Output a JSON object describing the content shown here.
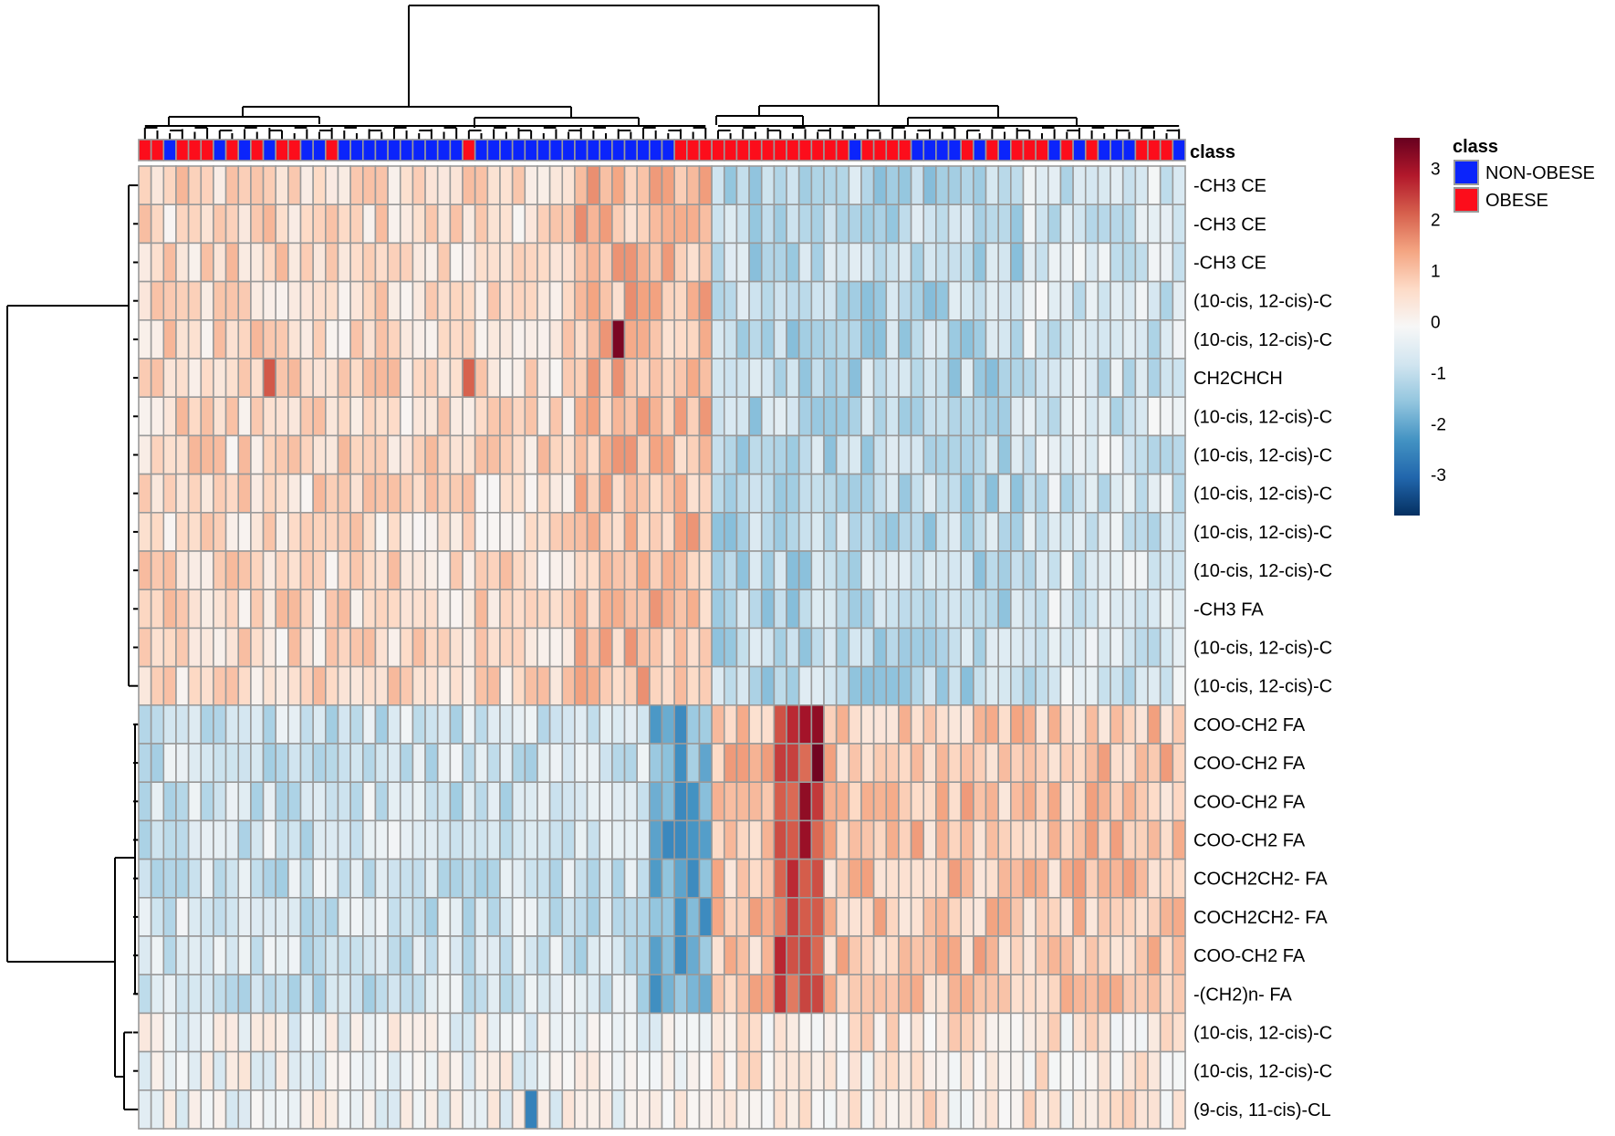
{
  "chart_data": {
    "type": "heatmap",
    "annotation_title": "class",
    "row_labels": [
      "-CH3 CE",
      "-CH3 CE",
      "-CH3 CE",
      "(10-cis, 12-cis)-C",
      "(10-cis, 12-cis)-C",
      "CH2CHCH",
      "(10-cis, 12-cis)-C",
      "(10-cis, 12-cis)-C",
      "(10-cis, 12-cis)-C",
      "(10-cis, 12-cis)-C",
      "(10-cis, 12-cis)-C",
      "-CH3 FA",
      "(10-cis, 12-cis)-C",
      "(10-cis, 12-cis)-C",
      "COO-CH2 FA",
      "COO-CH2 FA",
      "COO-CH2 FA",
      "COO-CH2 FA",
      "COCH2CH2- FA",
      "COCH2CH2- FA",
      "COO-CH2 FA",
      "-(CH2)n- FA",
      "(10-cis, 12-cis)-C",
      "(10-cis, 12-cis)-C",
      "(9-cis, 11-cis)-CL"
    ],
    "column_classes": [
      "OBESE",
      "OBESE",
      "NON-OBESE",
      "OBESE",
      "OBESE",
      "OBESE",
      "NON-OBESE",
      "OBESE",
      "NON-OBESE",
      "OBESE",
      "NON-OBESE",
      "OBESE",
      "OBESE",
      "NON-OBESE",
      "NON-OBESE",
      "OBESE",
      "NON-OBESE",
      "NON-OBESE",
      "NON-OBESE",
      "NON-OBESE",
      "NON-OBESE",
      "NON-OBESE",
      "NON-OBESE",
      "NON-OBESE",
      "NON-OBESE",
      "NON-OBESE",
      "OBESE",
      "NON-OBESE",
      "NON-OBESE",
      "NON-OBESE",
      "NON-OBESE",
      "NON-OBESE",
      "NON-OBESE",
      "NON-OBESE",
      "NON-OBESE",
      "NON-OBESE",
      "NON-OBESE",
      "NON-OBESE",
      "NON-OBESE",
      "NON-OBESE",
      "NON-OBESE",
      "NON-OBESE",
      "NON-OBESE",
      "OBESE",
      "OBESE",
      "OBESE",
      "OBESE",
      "OBESE",
      "OBESE",
      "OBESE",
      "OBESE",
      "OBESE",
      "OBESE",
      "OBESE",
      "OBESE",
      "OBESE",
      "OBESE",
      "NON-OBESE",
      "OBESE",
      "OBESE",
      "OBESE",
      "OBESE",
      "NON-OBESE",
      "NON-OBESE",
      "NON-OBESE",
      "NON-OBESE",
      "OBESE",
      "NON-OBESE",
      "OBESE",
      "NON-OBESE",
      "OBESE",
      "OBESE",
      "OBESE",
      "NON-OBESE",
      "OBESE",
      "NON-OBESE",
      "OBESE",
      "NON-OBESE",
      "NON-OBESE",
      "NON-OBESE",
      "OBESE",
      "OBESE",
      "OBESE",
      "NON-OBESE"
    ],
    "legend": {
      "title": "class",
      "entries": [
        {
          "label": "NON-OBESE",
          "color": "#0b24fb"
        },
        {
          "label": "OBESE",
          "color": "#fc0d1b"
        }
      ],
      "placement": "top-right"
    },
    "colorbar": {
      "ticks": [
        3,
        2,
        1,
        0,
        -1,
        -2,
        -3
      ],
      "range": [
        -3.8,
        3.6
      ],
      "colors": [
        "#053061",
        "#2166ac",
        "#4393c3",
        "#92c5de",
        "#d1e5f0",
        "#f7f7f7",
        "#fddbc7",
        "#f4a582",
        "#d6604d",
        "#b2182b",
        "#67001f"
      ]
    },
    "grid_color": "#9a9a9a",
    "n_columns": 84,
    "n_rows": 25
  }
}
